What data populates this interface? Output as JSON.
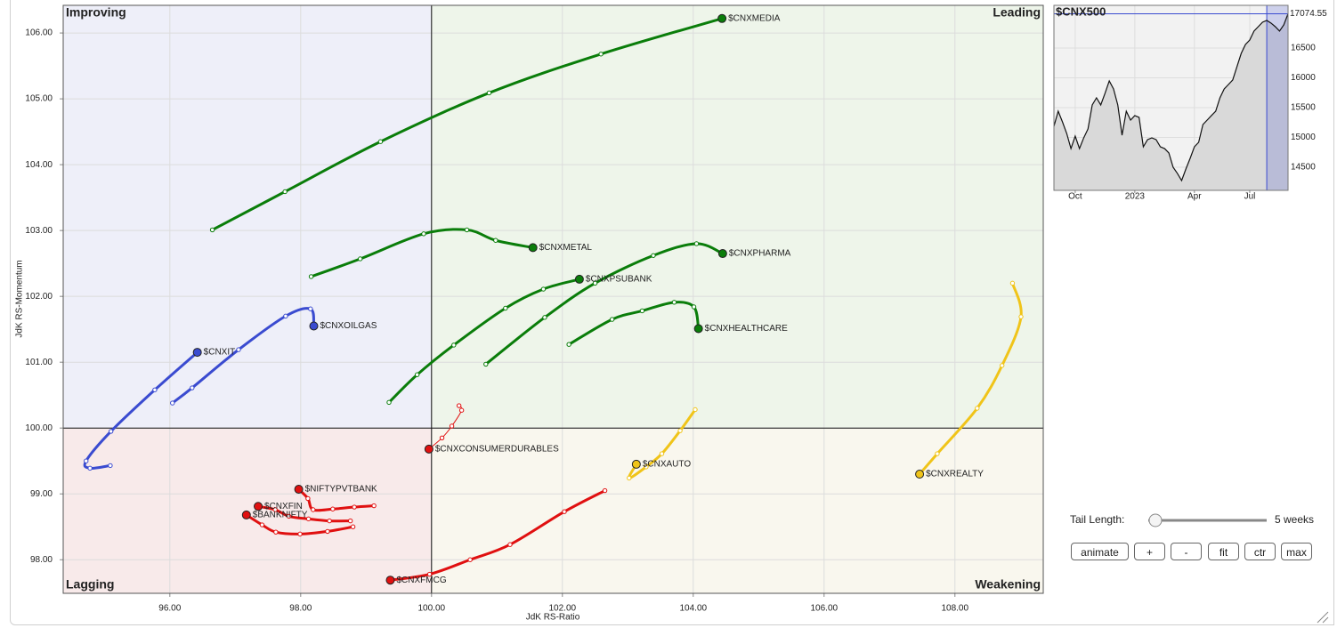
{
  "chart_data": [
    {
      "type": "rrg",
      "x_label": "JdK RS-Ratio",
      "y_label": "JdK RS-Momentum",
      "xlim": [
        94.37,
        109.35
      ],
      "ylim": [
        97.49,
        106.42
      ],
      "xticks": [
        {
          "value": 96,
          "label": "96.00"
        },
        {
          "value": 98,
          "label": "98.00"
        },
        {
          "value": 100,
          "label": "100.00"
        },
        {
          "value": 102,
          "label": "102.00"
        },
        {
          "value": 104,
          "label": "104.00"
        },
        {
          "value": 106,
          "label": "106.00"
        },
        {
          "value": 108,
          "label": "108.00"
        }
      ],
      "yticks": [
        {
          "value": 98,
          "label": "98.00"
        },
        {
          "value": 99,
          "label": "99.00"
        },
        {
          "value": 100,
          "label": "100.00"
        },
        {
          "value": 101,
          "label": "101.00"
        },
        {
          "value": 102,
          "label": "102.00"
        },
        {
          "value": 103,
          "label": "103.00"
        },
        {
          "value": 104,
          "label": "104.00"
        },
        {
          "value": 105,
          "label": "105.00"
        },
        {
          "value": 106,
          "label": "106.00"
        }
      ],
      "grid": true,
      "center": {
        "x": 100,
        "y": 100
      },
      "quadrants": [
        {
          "name": "Improving",
          "corner": "top-left",
          "color": "#8a90d8",
          "background": "#eeeff9"
        },
        {
          "name": "Leading",
          "corner": "top-right",
          "color": "#6fbf6f",
          "background": "#eef5ea"
        },
        {
          "name": "Lagging",
          "corner": "bottom-left",
          "color": "#f08888",
          "background": "#f8eaea"
        },
        {
          "name": "Weakening",
          "corner": "bottom-right",
          "color": "#f0c419",
          "background": "#f9f7ee"
        }
      ],
      "series": [
        {
          "name": "$CNXMEDIA",
          "color": "#0a7d0a",
          "line_width": 3,
          "x": [
            96.65,
            97.76,
            99.22,
            100.88,
            102.59,
            104.44
          ],
          "values": [
            103.01,
            103.59,
            104.35,
            105.09,
            105.68,
            106.22
          ]
        },
        {
          "name": "$CNXMETAL",
          "color": "#0a7d0a",
          "line_width": 3,
          "x": [
            98.16,
            98.91,
            99.88,
            100.54,
            100.98,
            101.55
          ],
          "values": [
            102.3,
            102.57,
            102.95,
            103.01,
            102.85,
            102.74
          ]
        },
        {
          "name": "$CNXPHARMA",
          "color": "#0a7d0a",
          "line_width": 3,
          "x": [
            100.83,
            101.73,
            102.5,
            103.39,
            104.05,
            104.45
          ],
          "values": [
            100.97,
            101.68,
            102.2,
            102.62,
            102.8,
            102.65
          ]
        },
        {
          "name": "$CNXPSUBANK",
          "color": "#0a7d0a",
          "line_width": 3,
          "x": [
            99.35,
            99.78,
            100.34,
            101.13,
            101.71,
            102.26
          ],
          "values": [
            100.39,
            100.81,
            101.26,
            101.82,
            102.11,
            102.26
          ]
        },
        {
          "name": "$CNXHEALTHCARE",
          "color": "#0a7d0a",
          "line_width": 3,
          "x": [
            102.1,
            102.76,
            103.22,
            103.71,
            104.01,
            104.08
          ],
          "values": [
            101.27,
            101.65,
            101.78,
            101.91,
            101.84,
            101.51
          ]
        },
        {
          "name": "$CNXOILGAS",
          "color": "#3a4bd0",
          "line_width": 3,
          "x": [
            96.04,
            96.34,
            97.05,
            97.77,
            98.15,
            98.2
          ],
          "values": [
            100.38,
            100.61,
            101.19,
            101.7,
            101.81,
            101.55
          ]
        },
        {
          "name": "$CNXIT",
          "color": "#3a4bd0",
          "line_width": 3,
          "x": [
            95.09,
            94.78,
            94.72,
            95.1,
            95.77,
            96.42
          ],
          "values": [
            99.43,
            99.39,
            99.5,
            99.95,
            100.58,
            101.15
          ]
        },
        {
          "name": "$CNXCONSUMERDURABLES",
          "color": "#e01010",
          "line_width": 1,
          "x": [
            100.42,
            100.46,
            100.31,
            100.16,
            99.96
          ],
          "values": [
            100.34,
            100.27,
            100.03,
            99.85,
            99.68
          ]
        },
        {
          "name": "$NIFTYPVTBANK",
          "color": "#e01010",
          "line_width": 3,
          "x": [
            99.12,
            98.82,
            98.49,
            98.19,
            98.11,
            97.97
          ],
          "values": [
            98.82,
            98.8,
            98.77,
            98.76,
            98.93,
            99.07
          ]
        },
        {
          "name": "$CNXFIN",
          "color": "#e01010",
          "line_width": 3,
          "x": [
            98.76,
            98.44,
            98.12,
            97.82,
            97.61,
            97.35
          ],
          "values": [
            98.59,
            98.59,
            98.62,
            98.66,
            98.76,
            98.81
          ]
        },
        {
          "name": "$BANKNIFTY",
          "color": "#e01010",
          "line_width": 3,
          "x": [
            98.8,
            98.41,
            97.99,
            97.62,
            97.41,
            97.17
          ],
          "values": [
            98.5,
            98.43,
            98.39,
            98.42,
            98.53,
            98.68
          ]
        },
        {
          "name": "$CNXFMCG",
          "color": "#e01010",
          "line_width": 3,
          "x": [
            102.65,
            102.03,
            101.2,
            100.59,
            99.97,
            99.37
          ],
          "values": [
            99.05,
            98.73,
            98.23,
            98.0,
            97.78,
            97.69
          ]
        },
        {
          "name": "$CNXAUTO",
          "color": "#f0c419",
          "line_width": 3,
          "x": [
            104.03,
            103.8,
            103.52,
            103.28,
            103.02,
            103.13
          ],
          "values": [
            100.28,
            99.96,
            99.61,
            99.41,
            99.24,
            99.45
          ]
        },
        {
          "name": "$CNXREALTY",
          "color": "#f0c419",
          "line_width": 3,
          "x": [
            108.88,
            109.01,
            108.72,
            108.34,
            107.73,
            107.46
          ],
          "values": [
            102.2,
            101.69,
            100.95,
            100.3,
            99.61,
            99.3
          ]
        }
      ]
    },
    {
      "type": "area",
      "title": "$CNX500",
      "color": "#111111",
      "fill": "#d9d9d9",
      "highlight_color": "#3a4bd0",
      "ylim": [
        14112,
        17216
      ],
      "yticks": [
        14500,
        15000,
        15500,
        16000,
        16500
      ],
      "grid": true,
      "categories": [
        null,
        null,
        null,
        null,
        null,
        "Oct",
        null,
        null,
        null,
        null,
        null,
        null,
        null,
        null,
        null,
        null,
        null,
        null,
        null,
        "2023",
        null,
        null,
        null,
        null,
        null,
        null,
        null,
        null,
        null,
        null,
        null,
        null,
        null,
        "Apr",
        null,
        null,
        null,
        null,
        null,
        null,
        null,
        null,
        null,
        null,
        null,
        null,
        "Jul",
        null,
        null,
        null,
        null,
        null,
        null,
        null,
        null,
        null
      ],
      "values": [
        15187,
        15440,
        15261,
        15067,
        14813,
        15022,
        14813,
        14993,
        15142,
        15545,
        15664,
        15545,
        15739,
        15948,
        15813,
        15545,
        15037,
        15440,
        15291,
        15366,
        15336,
        14843,
        14963,
        14993,
        14963,
        14843,
        14813,
        14739,
        14500,
        14396,
        14276,
        14470,
        14649,
        14843,
        14918,
        15216,
        15291,
        15366,
        15440,
        15664,
        15813,
        15888,
        15963,
        16187,
        16410,
        16560,
        16634,
        16784,
        16858,
        16933,
        16963,
        16918,
        16858,
        16784,
        16888,
        17074.55
      ]
    }
  ],
  "controls": {
    "tail_length": {
      "label": "Tail Length:",
      "value": "5 weeks"
    },
    "buttons": [
      "animate",
      "+",
      "-",
      "fit",
      "ctr",
      "max"
    ]
  }
}
